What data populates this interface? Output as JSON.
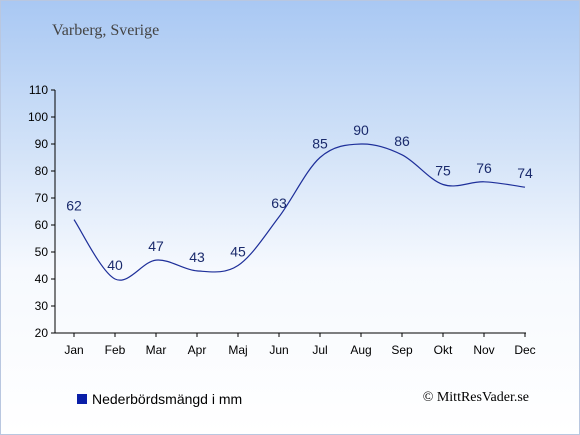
{
  "location": "Varberg, Sverige",
  "credit": "© MittResVader.se",
  "chart_data": {
    "type": "line",
    "categories": [
      "Jan",
      "Feb",
      "Mar",
      "Apr",
      "Maj",
      "Jun",
      "Jul",
      "Aug",
      "Sep",
      "Okt",
      "Nov",
      "Dec"
    ],
    "series": [
      {
        "name": "Nederbördsmängd i mm",
        "values": [
          62,
          40,
          47,
          43,
          45,
          63,
          85,
          90,
          86,
          75,
          76,
          74
        ]
      }
    ],
    "yticks": [
      20,
      30,
      40,
      50,
      60,
      70,
      80,
      90,
      100,
      110
    ],
    "ylim": [
      20,
      110
    ],
    "line_color": "#1e2f9a",
    "legend_color": "#0a1fa8",
    "grid": false,
    "legend_position": "bottom-left"
  }
}
